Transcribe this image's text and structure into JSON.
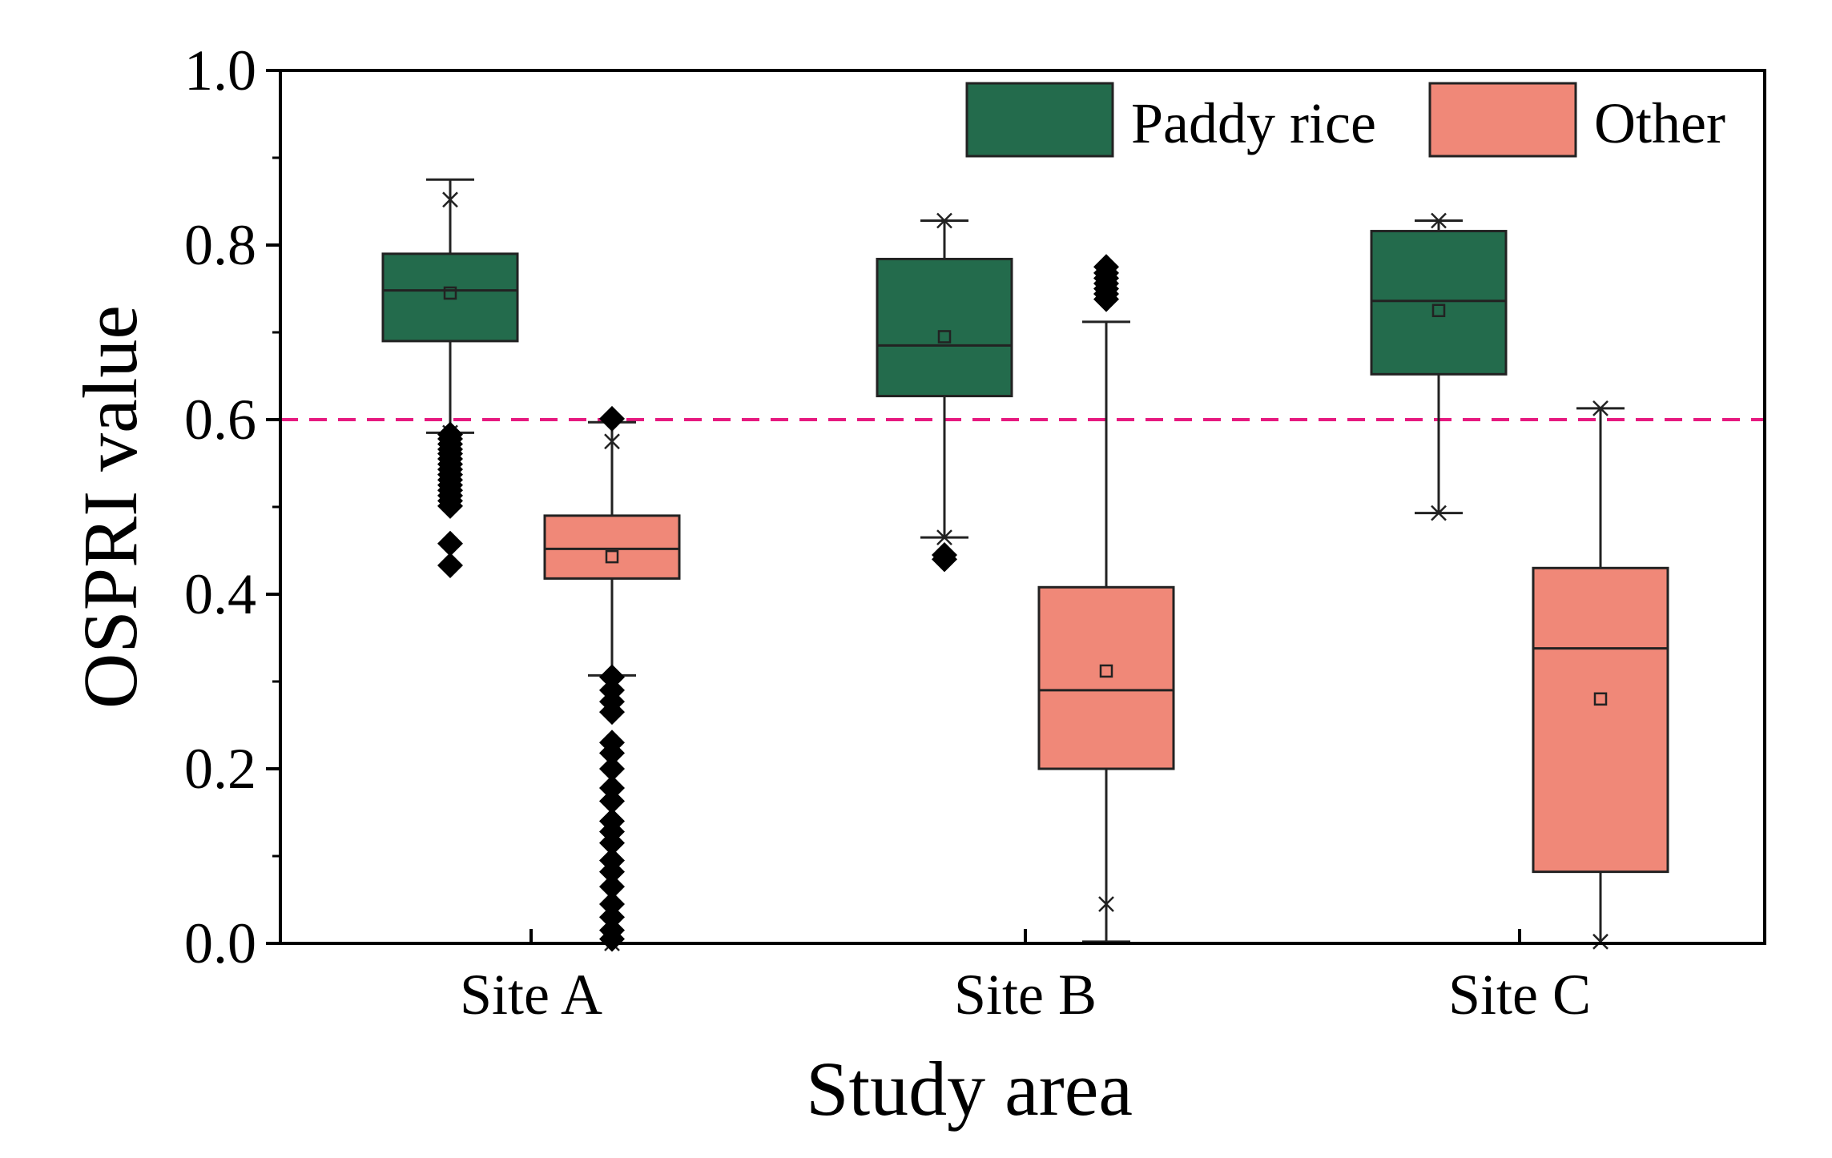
{
  "chart_data": {
    "type": "box",
    "xlabel": "Study area",
    "ylabel": "OSPRI value",
    "ylim": [
      0.0,
      1.0
    ],
    "yticks": [
      0.0,
      0.2,
      0.4,
      0.6,
      0.8,
      1.0
    ],
    "ytick_labels": [
      "0.0",
      "0.2",
      "0.4",
      "0.6",
      "0.8",
      "1.0"
    ],
    "categories": [
      "Site A",
      "Site B",
      "Site C"
    ],
    "threshold": {
      "value": 0.6,
      "color": "#e6197f",
      "style": "dashed"
    },
    "legend": {
      "position": "top-right"
    },
    "series": [
      {
        "name": "Paddy rice",
        "color": "#236b4c",
        "boxes": [
          {
            "category": "Site A",
            "q1": 0.69,
            "median": 0.748,
            "q3": 0.79,
            "mean": 0.745,
            "whisker_low": 0.585,
            "whisker_high": 0.875,
            "min_marker": 0.585,
            "max_marker": 0.852,
            "outliers": [
              0.583,
              0.578,
              0.572,
              0.566,
              0.561,
              0.555,
              0.549,
              0.543,
              0.537,
              0.531,
              0.525,
              0.519,
              0.513,
              0.507,
              0.501,
              0.458,
              0.433
            ]
          },
          {
            "category": "Site B",
            "q1": 0.627,
            "median": 0.685,
            "q3": 0.784,
            "mean": 0.695,
            "whisker_low": 0.465,
            "whisker_high": 0.828,
            "min_marker": 0.465,
            "max_marker": 0.828,
            "outliers": [
              0.445,
              0.44
            ]
          },
          {
            "category": "Site C",
            "q1": 0.652,
            "median": 0.736,
            "q3": 0.816,
            "mean": 0.725,
            "whisker_low": 0.493,
            "whisker_high": 0.828,
            "min_marker": 0.493,
            "max_marker": 0.828,
            "outliers": []
          }
        ]
      },
      {
        "name": "Other",
        "color": "#f08878",
        "boxes": [
          {
            "category": "Site A",
            "q1": 0.418,
            "median": 0.452,
            "q3": 0.49,
            "mean": 0.443,
            "whisker_low": 0.307,
            "whisker_high": 0.597,
            "min_marker": 0.0,
            "max_marker": 0.575,
            "outliers": [
              0.601,
              0.305,
              0.29,
              0.277,
              0.265,
              0.23,
              0.218,
              0.2,
              0.178,
              0.163,
              0.14,
              0.128,
              0.115,
              0.095,
              0.082,
              0.065,
              0.045,
              0.03,
              0.015,
              0.005
            ]
          },
          {
            "category": "Site B",
            "q1": 0.2,
            "median": 0.29,
            "q3": 0.408,
            "mean": 0.312,
            "whisker_low": 0.002,
            "whisker_high": 0.712,
            "min_marker": 0.045,
            "max_marker": 0.77,
            "outliers": [
              0.775,
              0.768,
              0.762,
              0.756,
              0.75,
              0.744,
              0.738
            ]
          },
          {
            "category": "Site C",
            "q1": 0.082,
            "median": 0.338,
            "q3": 0.43,
            "mean": 0.28,
            "whisker_low": 0.0,
            "whisker_high": 0.613,
            "min_marker": 0.002,
            "max_marker": 0.613,
            "outliers": []
          }
        ]
      }
    ]
  }
}
